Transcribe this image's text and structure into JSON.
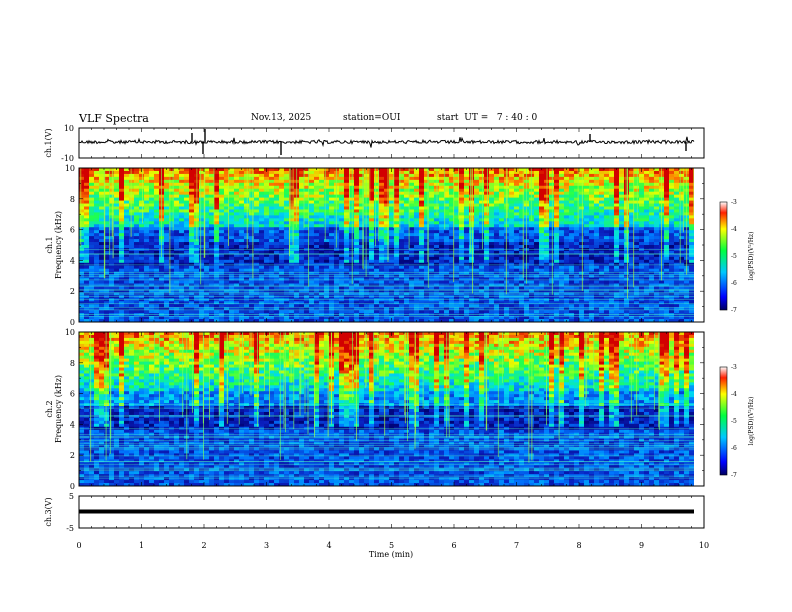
{
  "header": {
    "title": "VLF Spectra",
    "date": "Nov.13, 2025",
    "station": "station=OUI",
    "start": "start  UT =   7 : 40 : 0"
  },
  "chart_data": [
    {
      "type": "line",
      "name": "ch1-waveform",
      "ylabel": "ch.1(V)",
      "ylim": [
        -10,
        10
      ],
      "ytick_labels": [
        "10",
        "-10"
      ],
      "xlim": [
        0,
        10
      ]
    },
    {
      "type": "heatmap",
      "name": "ch1-spectrogram",
      "ylabel_line1": "ch.1",
      "ylabel_line2": "Frequency  (kHz)",
      "ylim": [
        0,
        10
      ],
      "ytick_labels": [
        "0",
        "2",
        "4",
        "6",
        "8",
        "10"
      ],
      "xlim": [
        0,
        10
      ],
      "colorbar": {
        "label": "log(PSD)(V²/Hz)",
        "range": [
          -7,
          -3
        ],
        "tick_labels": [
          "-3",
          "-4",
          "-5",
          "-6",
          "-7"
        ]
      }
    },
    {
      "type": "heatmap",
      "name": "ch2-spectrogram",
      "ylabel_line1": "ch.2",
      "ylabel_line2": "Frequency  (kHz)",
      "ylim": [
        0,
        10
      ],
      "ytick_labels": [
        "0",
        "2",
        "4",
        "6",
        "8",
        "10"
      ],
      "xlim": [
        0,
        10
      ],
      "colorbar": {
        "label": "log(PSD)(V²/Hz)",
        "range": [
          -7,
          -3
        ],
        "tick_labels": [
          "-3",
          "-4",
          "-5",
          "-6",
          "-7"
        ]
      }
    },
    {
      "type": "line",
      "name": "ch3-waveform",
      "ylabel": "ch.3(V)",
      "ylim": [
        -5,
        5
      ],
      "ytick_labels": [
        "5",
        "-5"
      ],
      "xlim": [
        0,
        10
      ],
      "xlabel": "Time  (min)",
      "xtick_labels": [
        "0",
        "1",
        "2",
        "3",
        "4",
        "5",
        "6",
        "7",
        "8",
        "9",
        "10"
      ]
    }
  ],
  "colors": {
    "frame": "#000000",
    "spectrogram_low": "#0a1e8c",
    "spectrogram_high": "#d00000"
  }
}
